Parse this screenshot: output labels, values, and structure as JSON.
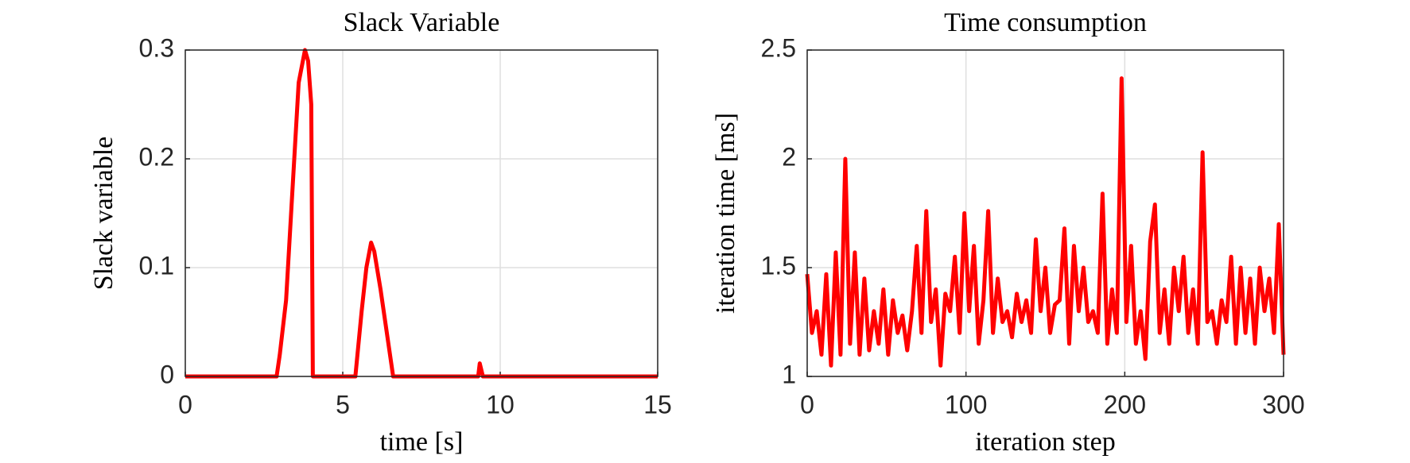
{
  "chart_data": [
    {
      "type": "line",
      "title": "Slack Variable",
      "xlabel": "time [s]",
      "ylabel": "Slack variable",
      "xlim": [
        0,
        15
      ],
      "ylim": [
        0,
        0.3
      ],
      "xticks": [
        0,
        5,
        10,
        15
      ],
      "yticks": [
        0,
        0.1,
        0.2,
        0.3
      ],
      "grid": true,
      "series": [
        {
          "color": "#ff0000",
          "x": [
            0,
            2.9,
            3.0,
            3.2,
            3.3,
            3.4,
            3.5,
            3.6,
            3.8,
            3.9,
            4.0,
            4.05,
            5.4,
            5.6,
            5.75,
            5.9,
            6.0,
            6.2,
            6.6,
            9.3,
            9.35,
            9.45,
            15
          ],
          "values": [
            0,
            0,
            0.02,
            0.07,
            0.12,
            0.17,
            0.22,
            0.27,
            0.3,
            0.29,
            0.25,
            0,
            0,
            0.06,
            0.1,
            0.123,
            0.115,
            0.08,
            0,
            0,
            0.012,
            0,
            0
          ]
        }
      ]
    },
    {
      "type": "line",
      "title": "Time consumption",
      "xlabel": "iteration step",
      "ylabel": "iteration time [ms]",
      "xlim": [
        0,
        300
      ],
      "ylim": [
        1,
        2.5
      ],
      "xticks": [
        0,
        100,
        200,
        300
      ],
      "yticks": [
        1,
        1.5,
        2,
        2.5
      ],
      "grid": true,
      "series": [
        {
          "color": "#ff0000",
          "x": [
            0,
            3,
            6,
            9,
            12,
            15,
            18,
            21,
            24,
            27,
            30,
            33,
            36,
            39,
            42,
            45,
            48,
            51,
            54,
            57,
            60,
            63,
            66,
            69,
            72,
            75,
            78,
            81,
            84,
            87,
            90,
            93,
            96,
            99,
            102,
            105,
            108,
            111,
            114,
            117,
            120,
            123,
            126,
            129,
            132,
            135,
            138,
            141,
            144,
            147,
            150,
            153,
            156,
            159,
            162,
            165,
            168,
            171,
            174,
            177,
            180,
            183,
            186,
            189,
            192,
            195,
            198,
            201,
            204,
            207,
            210,
            213,
            216,
            219,
            222,
            225,
            228,
            231,
            234,
            237,
            240,
            243,
            246,
            249,
            252,
            255,
            258,
            261,
            264,
            267,
            270,
            273,
            276,
            279,
            282,
            285,
            288,
            291,
            294,
            297,
            300
          ],
          "values": [
            1.47,
            1.2,
            1.3,
            1.1,
            1.47,
            1.05,
            1.57,
            1.1,
            2.0,
            1.15,
            1.57,
            1.1,
            1.45,
            1.12,
            1.3,
            1.15,
            1.4,
            1.1,
            1.35,
            1.2,
            1.28,
            1.12,
            1.3,
            1.6,
            1.2,
            1.76,
            1.25,
            1.4,
            1.05,
            1.38,
            1.3,
            1.55,
            1.2,
            1.75,
            1.3,
            1.6,
            1.15,
            1.35,
            1.76,
            1.2,
            1.45,
            1.25,
            1.3,
            1.18,
            1.38,
            1.25,
            1.35,
            1.2,
            1.63,
            1.3,
            1.5,
            1.2,
            1.33,
            1.35,
            1.68,
            1.15,
            1.6,
            1.3,
            1.5,
            1.25,
            1.3,
            1.2,
            1.84,
            1.15,
            1.4,
            1.2,
            2.37,
            1.25,
            1.6,
            1.15,
            1.3,
            1.08,
            1.62,
            1.79,
            1.2,
            1.4,
            1.15,
            1.5,
            1.3,
            1.55,
            1.2,
            1.4,
            1.15,
            2.03,
            1.25,
            1.3,
            1.15,
            1.35,
            1.25,
            1.55,
            1.15,
            1.5,
            1.2,
            1.45,
            1.15,
            1.5,
            1.3,
            1.45,
            1.2,
            1.7,
            1.1
          ]
        }
      ]
    }
  ]
}
